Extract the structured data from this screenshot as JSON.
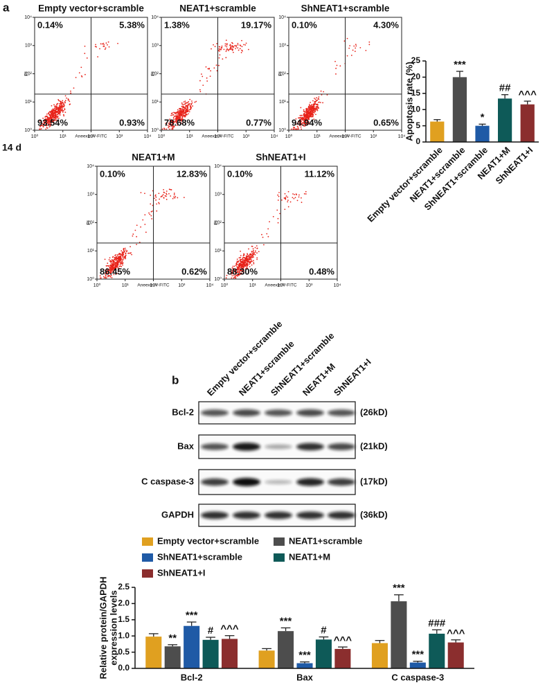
{
  "panel_a_label": "a",
  "timepoint": "14 d",
  "panel_b_label": "b",
  "flow_plots": {
    "xlabel": "Aneexin-V-FITC",
    "ylabel": "PI",
    "xticks": [
      {
        "value": 1,
        "label": "10⁰"
      },
      {
        "value": 10,
        "label": "10¹"
      },
      {
        "value": 100,
        "label": "10²"
      },
      {
        "value": 1000,
        "label": "10³"
      },
      {
        "value": 10000,
        "label": "10⁴"
      }
    ],
    "yticks": [
      {
        "value": 1,
        "label": "10⁰"
      },
      {
        "value": 10,
        "label": "10¹"
      },
      {
        "value": 100,
        "label": "10²"
      },
      {
        "value": 1000,
        "label": "10³"
      },
      {
        "value": 10000,
        "label": "10⁴"
      }
    ],
    "plots": [
      {
        "title": "Empty vector+scramble",
        "upper_left": "0.14%",
        "upper_right": "5.38%",
        "lower_left": "93.54%",
        "lower_right": "0.93%"
      },
      {
        "title": "NEAT1+scramble",
        "upper_left": "1.38%",
        "upper_right": "19.17%",
        "lower_left": "78.68%",
        "lower_right": "0.77%"
      },
      {
        "title": "ShNEAT1+scramble",
        "upper_left": "0.10%",
        "upper_right": "4.30%",
        "lower_left": "94.94%",
        "lower_right": "0.65%"
      },
      {
        "title": "NEAT1+M",
        "upper_left": "0.10%",
        "upper_right": "12.83%",
        "lower_left": "86.45%",
        "lower_right": "0.62%"
      },
      {
        "title": "ShNEAT1+I",
        "upper_left": "0.10%",
        "upper_right": "11.12%",
        "lower_left": "88.30%",
        "lower_right": "0.48%"
      }
    ]
  },
  "western_blot": {
    "lanes": [
      "Empty vector+scramble",
      "NEAT1+scramble",
      "ShNEAT1+scramble",
      "NEAT1+M",
      "ShNEAT1+I"
    ],
    "rows": [
      {
        "protein": "Bcl-2",
        "size": "(26kD)"
      },
      {
        "protein": "Bax",
        "size": "(21kD)"
      },
      {
        "protein": "C caspase-3",
        "size": "(17kD)"
      },
      {
        "protein": "GAPDH",
        "size": "(36kD)"
      }
    ]
  },
  "chart_data": [
    {
      "type": "bar",
      "ylabel": "Apoptosis rate (%)",
      "categories": [
        "Empty vector+scramble",
        "NEAT1+scramble",
        "ShNEAT1+scramble",
        "NEAT1+M",
        "ShNEAT1+I"
      ],
      "values": [
        6.3,
        20.0,
        5.0,
        13.4,
        11.6
      ],
      "errors": [
        0.6,
        1.8,
        0.5,
        1.2,
        1.0
      ],
      "annotations": [
        null,
        "***",
        "*",
        "##",
        "^^^"
      ],
      "colors": [
        "#e0a020",
        "#4d4d4d",
        "#1f5aa6",
        "#0e5a58",
        "#8b2e2e"
      ],
      "ylim": [
        0,
        25
      ],
      "yticks": [
        0,
        5,
        10,
        15,
        20,
        25
      ]
    },
    {
      "type": "bar",
      "ylabel": [
        "Relative protein/GAPDH",
        "expression levels"
      ],
      "categories": [
        "Bcl-2",
        "Bax",
        "C caspase-3"
      ],
      "series": [
        {
          "name": "Empty vector+scramble",
          "color": "#e0a020",
          "values": [
            0.98,
            0.55,
            0.78
          ],
          "errors": [
            0.09,
            0.06,
            0.08
          ],
          "annotations": [
            null,
            null,
            null
          ]
        },
        {
          "name": "NEAT1+scramble",
          "color": "#4d4d4d",
          "values": [
            0.68,
            1.15,
            2.07
          ],
          "errors": [
            0.05,
            0.1,
            0.2
          ],
          "annotations": [
            "**",
            "***",
            "***"
          ]
        },
        {
          "name": "ShNEAT1+scramble",
          "color": "#1f5aa6",
          "values": [
            1.31,
            0.16,
            0.18
          ],
          "errors": [
            0.12,
            0.04,
            0.04
          ],
          "annotations": [
            "***",
            "***",
            "***"
          ]
        },
        {
          "name": "NEAT1+M",
          "color": "#0e5a58",
          "values": [
            0.88,
            0.89,
            1.07
          ],
          "errors": [
            0.08,
            0.08,
            0.12
          ],
          "annotations": [
            "#",
            "#",
            "###"
          ]
        },
        {
          "name": "ShNEAT1+I",
          "color": "#8b2e2e",
          "values": [
            0.91,
            0.6,
            0.8
          ],
          "errors": [
            0.1,
            0.06,
            0.08
          ],
          "annotations": [
            "^^^",
            "^^^",
            "^^^"
          ]
        }
      ],
      "ylim": [
        0,
        2.5
      ],
      "yticks": [
        {
          "value": 0,
          "label": "0.0"
        },
        0.5,
        {
          "value": 1,
          "label": "1.0"
        },
        1.5,
        {
          "value": 2,
          "label": "2.0"
        },
        2.5
      ]
    }
  ]
}
